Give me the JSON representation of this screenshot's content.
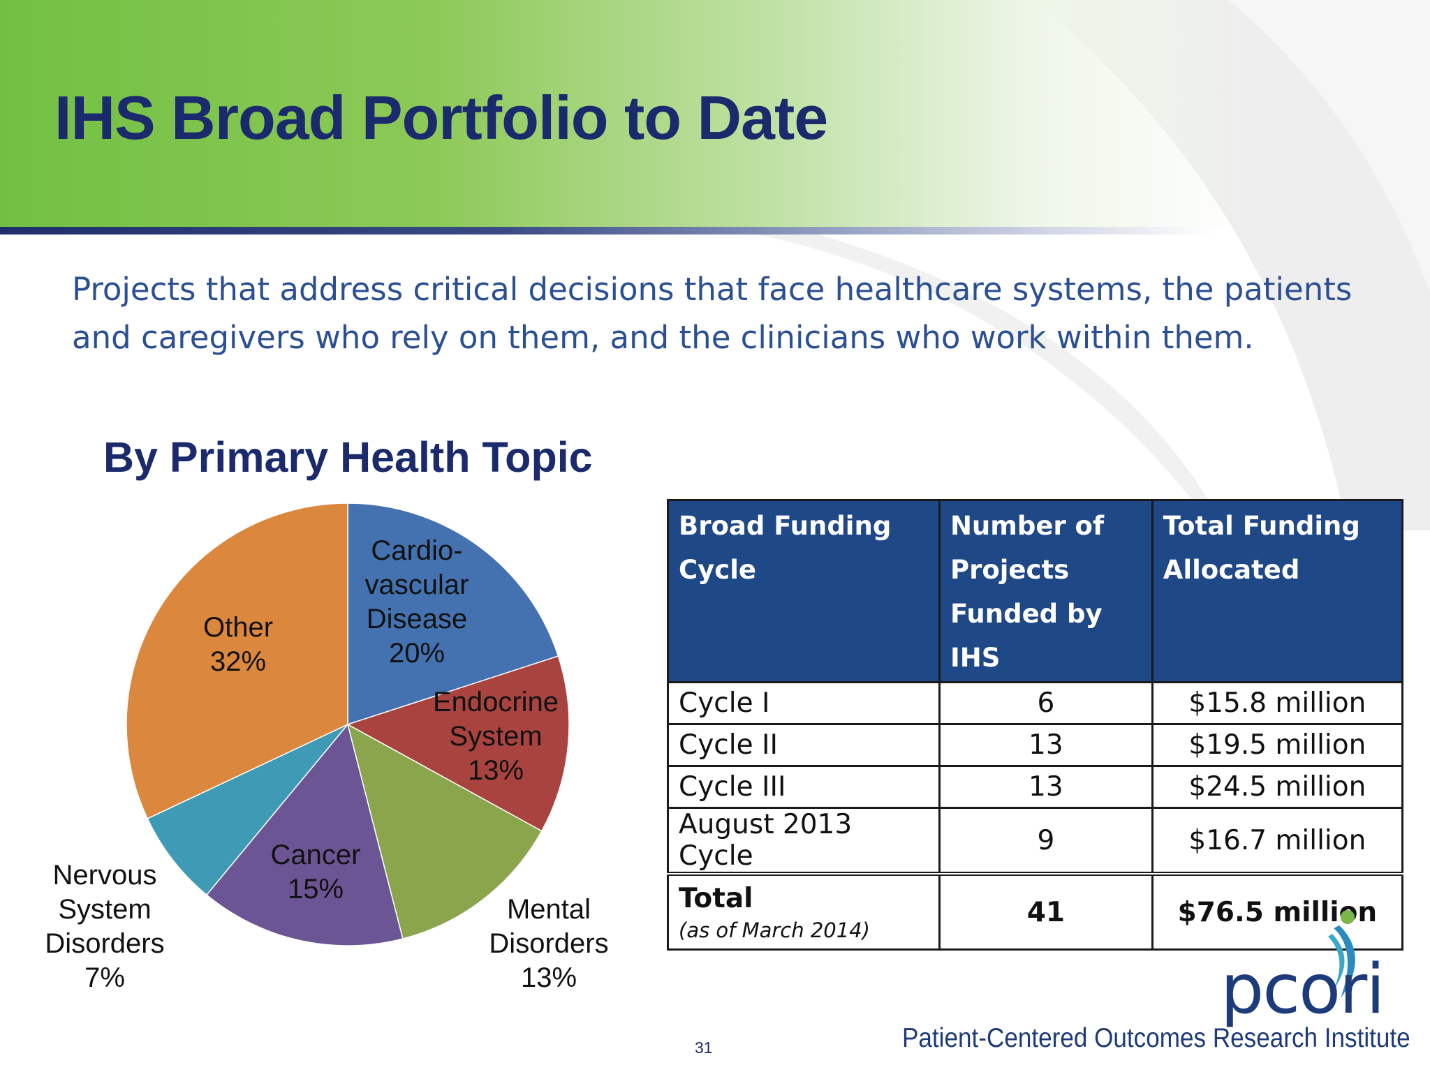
{
  "slide": {
    "title": "IHS Broad Portfolio to Date",
    "subtitle": "Projects that address critical decisions that face healthcare systems, the patients and caregivers who rely on them, and the clinicians who work within them.",
    "page_number": "31",
    "colors": {
      "header_green": "#72c043",
      "title_navy": "#1a2a6c",
      "subtitle_blue": "#2b4f93",
      "table_header": "#1f4886"
    }
  },
  "chart_data": {
    "type": "pie",
    "title": "By Primary Health Topic",
    "slices": [
      {
        "lines": [
          "Cardio-",
          "vascular",
          "Disease",
          "20%"
        ],
        "value": 20,
        "color": "#4472b0"
      },
      {
        "lines": [
          "Endocrine",
          "System",
          "13%"
        ],
        "value": 13,
        "color": "#a8433f"
      },
      {
        "lines": [
          "Mental",
          "Disorders",
          "13%"
        ],
        "value": 13,
        "color": "#8aa54c"
      },
      {
        "lines": [
          "Cancer",
          "15%"
        ],
        "value": 15,
        "color": "#6c5594"
      },
      {
        "lines": [
          "Nervous",
          "System",
          "Disorders",
          "7%"
        ],
        "value": 7,
        "color": "#3f9bb5"
      },
      {
        "lines": [
          "Other",
          "32%"
        ],
        "value": 32,
        "color": "#db873e"
      }
    ]
  },
  "table": {
    "headers": [
      "Broad Funding Cycle",
      "Number of Projects Funded by IHS",
      "Total Funding Allocated"
    ],
    "rows": [
      {
        "cycle": "Cycle I",
        "projects": "6",
        "funding": "$15.8 million"
      },
      {
        "cycle": "Cycle II",
        "projects": "13",
        "funding": "$19.5 million"
      },
      {
        "cycle": "Cycle III",
        "projects": "13",
        "funding": "$24.5 million"
      },
      {
        "cycle": "August 2013 Cycle",
        "projects": "9",
        "funding": "$16.7 million"
      }
    ],
    "total": {
      "label": "Total",
      "note": "(as of March 2014)",
      "projects": "41",
      "funding": "$76.5 million"
    }
  },
  "logo": {
    "wordmark": "pcori",
    "tagline": "Patient-Centered Outcomes Research Institute"
  }
}
